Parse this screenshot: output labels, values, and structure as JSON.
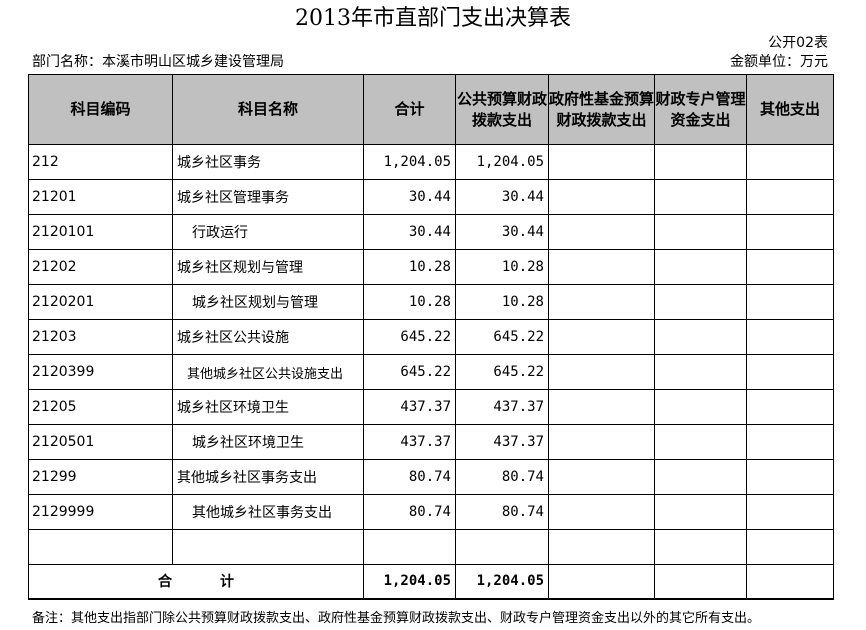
{
  "header": {
    "title": "2013年市直部门支出决算表",
    "table_no": "公开02表",
    "dept_label": "部门名称：本溪市明山区城乡建设管理局",
    "unit_label": "金额单位：万元"
  },
  "columns": {
    "code": "科目编码",
    "name": "科目名称",
    "total": "合计",
    "public": "公共预算财政拨款支出",
    "fund": "政府性基金预算财政拨款支出",
    "special": "财政专户管理资金支出",
    "other": "其他支出"
  },
  "rows": [
    {
      "code": "212",
      "name": "城乡社区事务",
      "total": "1,204.05",
      "public": "1,204.05",
      "fund": "",
      "special": "",
      "other": ""
    },
    {
      "code": "21201",
      "name": "城乡社区管理事务",
      "total": "30.44",
      "public": "30.44",
      "fund": "",
      "special": "",
      "other": ""
    },
    {
      "code": "2120101",
      "name": "行政运行",
      "total": "30.44",
      "public": "30.44",
      "fund": "",
      "special": "",
      "other": ""
    },
    {
      "code": "21202",
      "name": "城乡社区规划与管理",
      "total": "10.28",
      "public": "10.28",
      "fund": "",
      "special": "",
      "other": ""
    },
    {
      "code": "2120201",
      "name": "城乡社区规划与管理",
      "total": "10.28",
      "public": "10.28",
      "fund": "",
      "special": "",
      "other": ""
    },
    {
      "code": "21203",
      "name": "城乡社区公共设施",
      "total": "645.22",
      "public": "645.22",
      "fund": "",
      "special": "",
      "other": ""
    },
    {
      "code": "2120399",
      "name": "其他城乡社区公共设施支出",
      "total": "645.22",
      "public": "645.22",
      "fund": "",
      "special": "",
      "other": ""
    },
    {
      "code": "21205",
      "name": "城乡社区环境卫生",
      "total": "437.37",
      "public": "437.37",
      "fund": "",
      "special": "",
      "other": ""
    },
    {
      "code": "2120501",
      "name": "城乡社区环境卫生",
      "total": "437.37",
      "public": "437.37",
      "fund": "",
      "special": "",
      "other": ""
    },
    {
      "code": "21299",
      "name": "其他城乡社区事务支出",
      "total": "80.74",
      "public": "80.74",
      "fund": "",
      "special": "",
      "other": ""
    },
    {
      "code": "2129999",
      "name": "其他城乡社区事务支出",
      "total": "80.74",
      "public": "80.74",
      "fund": "",
      "special": "",
      "other": ""
    }
  ],
  "total_row": {
    "label_a": "合",
    "label_b": "计",
    "total": "1,204.05",
    "public": "1,204.05",
    "fund": "",
    "special": "",
    "other": ""
  },
  "footnote": "备注：其他支出指部门除公共预算财政拨款支出、政府性基金预算财政拨款支出、财政专户管理资金支出以外的其它所有支出。"
}
